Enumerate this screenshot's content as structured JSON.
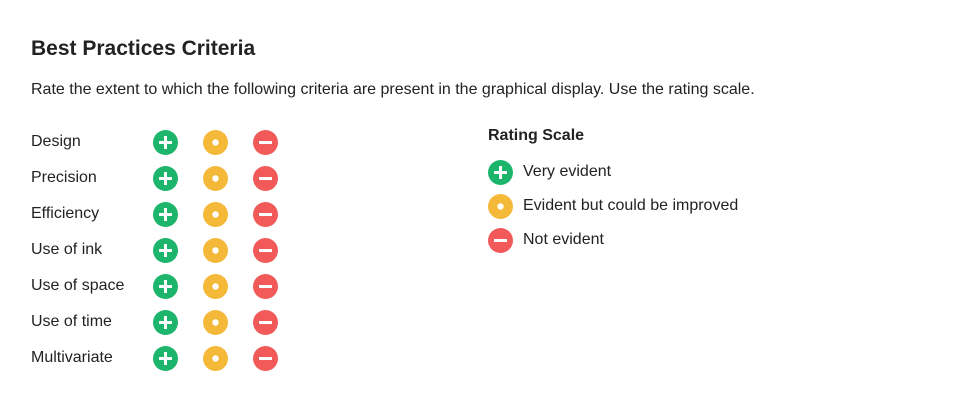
{
  "title": "Best Practices Criteria",
  "instructions": "Rate the extent to which the following criteria are present in the graphical display. Use the rating scale.",
  "colors": {
    "very_evident": "#1db46c",
    "improvable": "#f5b93a",
    "not_evident": "#f25a5a",
    "text": "#222222"
  },
  "criteria": [
    {
      "label": "Design"
    },
    {
      "label": "Precision"
    },
    {
      "label": "Efficiency"
    },
    {
      "label": "Use of ink"
    },
    {
      "label": "Use of space"
    },
    {
      "label": "Use of time"
    },
    {
      "label": "Multivariate"
    }
  ],
  "icons": {
    "very_evident": "plus-icon",
    "improvable": "dot-icon",
    "not_evident": "minus-icon"
  },
  "rating_scale": {
    "title": "Rating Scale",
    "items": [
      {
        "label": "Very evident",
        "icon": "plus-icon"
      },
      {
        "label": "Evident but could be improved",
        "icon": "dot-icon"
      },
      {
        "label": "Not evident",
        "icon": "minus-icon"
      }
    ]
  }
}
